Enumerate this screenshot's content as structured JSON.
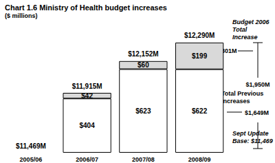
{
  "chart_data": {
    "type": "bar",
    "title": "Chart 1.6 Ministry of Health budget increases",
    "subtitle": "($ millions)",
    "categories": [
      "2005/06",
      "2006/07",
      "2007/08",
      "2008/09"
    ],
    "stacked": true,
    "data_labels": true,
    "series": [
      {
        "color": "#ffffff",
        "values": [
          0,
          404,
          623,
          622
        ],
        "value_labels": [
          null,
          "$404",
          "$623",
          "$622"
        ]
      },
      {
        "color": "#d9d9d9",
        "values": [
          0,
          42,
          60,
          199
        ],
        "value_labels": [
          null,
          "$42",
          "$60",
          "$199"
        ]
      }
    ],
    "total_labels": [
      "$11,469M",
      "$11,915M",
      "$12,152M",
      "$12,290M"
    ],
    "ylim": [
      0,
      1000
    ],
    "yticks": [
      0,
      1000
    ],
    "tick_labels": "x",
    "grid": false,
    "annotations": [
      {
        "text": "Budget 2006\nTotal\nIncrease"
      },
      {
        "text": "$301M"
      },
      {
        "text": "$1,950M"
      },
      {
        "text": "Total Previous\nIncreases"
      },
      {
        "text": "$1,649M"
      },
      {
        "text": "Sept Update\nBase: $11,469"
      }
    ]
  }
}
